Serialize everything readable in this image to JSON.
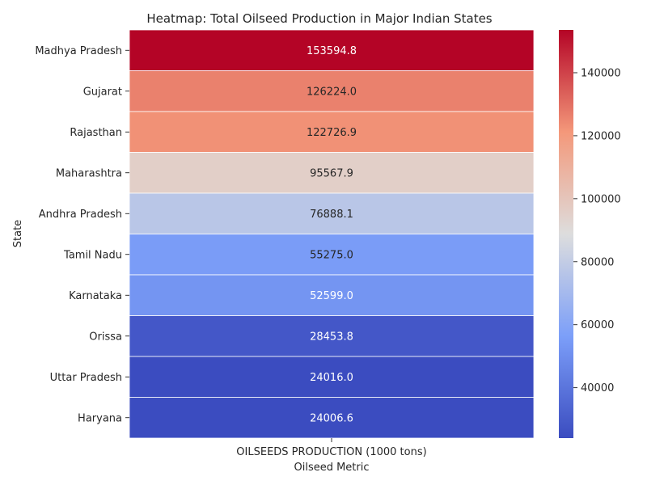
{
  "chart_data": {
    "type": "heatmap",
    "title": "Heatmap: Total Oilseed Production in Major Indian States",
    "xlabel": "Oilseed Metric",
    "ylabel": "State",
    "columns": [
      "OILSEEDS PRODUCTION (1000 tons)"
    ],
    "rows": [
      "Madhya Pradesh",
      "Gujarat",
      "Rajasthan",
      "Maharashtra",
      "Andhra Pradesh",
      "Tamil Nadu",
      "Karnataka",
      "Orissa",
      "Uttar Pradesh",
      "Haryana"
    ],
    "values": [
      153594.8,
      126224.0,
      122726.9,
      95567.9,
      76888.1,
      55275.0,
      52599.0,
      28453.8,
      24016.0,
      24006.6
    ],
    "value_labels": [
      "153594.8",
      "126224.0",
      "122726.9",
      "95567.9",
      "76888.1",
      "55275.0",
      "52599.0",
      "28453.8",
      "24016.0",
      "24006.6"
    ],
    "colormap": "coolwarm",
    "colorbar": {
      "min": 24006.6,
      "max": 153594.8,
      "ticks": [
        40000,
        60000,
        80000,
        100000,
        120000,
        140000
      ]
    }
  }
}
